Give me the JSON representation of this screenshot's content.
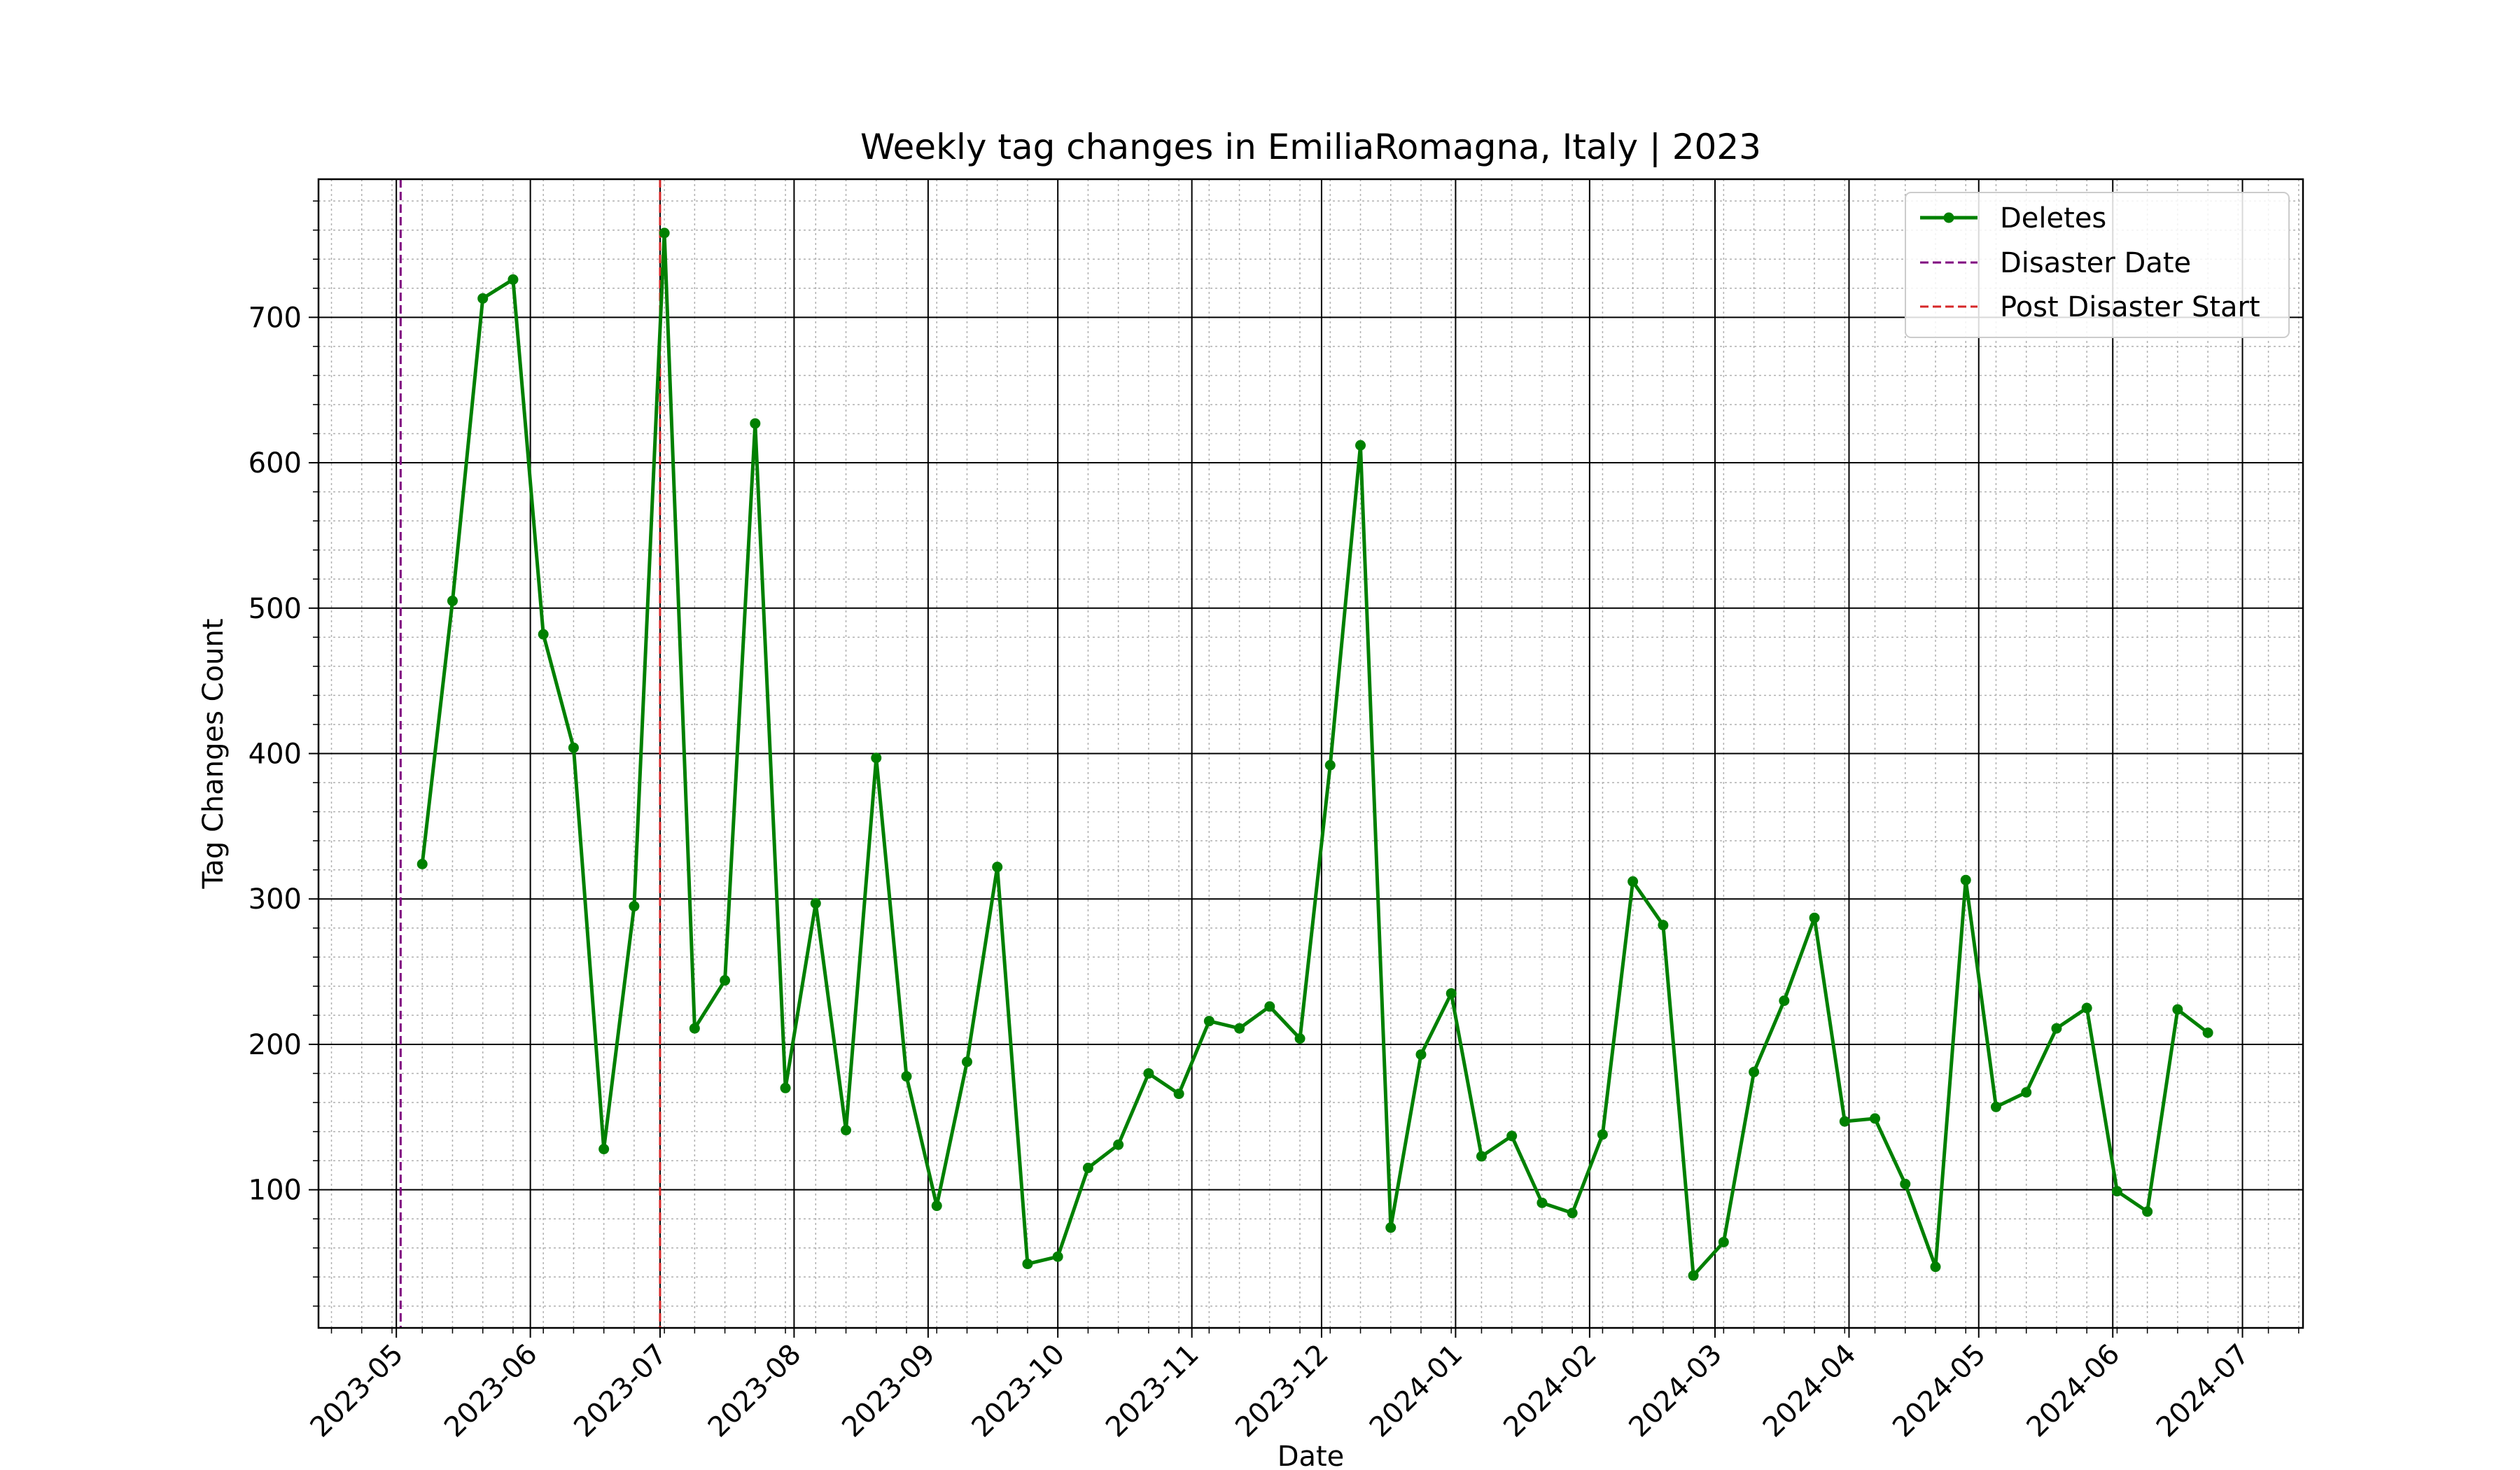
{
  "chart_data": {
    "type": "line",
    "title": "Weekly tag changes in EmiliaRomagna, Italy | 2023",
    "xlabel": "Date",
    "ylabel": "Tag Changes Count",
    "x_range": [
      "2023-04-13",
      "2024-07-15"
    ],
    "ylim": [
      5,
      795
    ],
    "x_ticks": [
      "2023-05",
      "2023-06",
      "2023-07",
      "2023-08",
      "2023-09",
      "2023-10",
      "2023-11",
      "2023-12",
      "2024-01",
      "2024-02",
      "2024-03",
      "2024-04",
      "2024-05",
      "2024-06",
      "2024-07"
    ],
    "y_ticks": [
      100,
      200,
      300,
      400,
      500,
      600,
      700
    ],
    "grid": "major solid, minor dotted",
    "legend_position": "top-right",
    "series": [
      {
        "name": "Deletes",
        "color": "#008000",
        "style": "solid line with circle markers",
        "x": [
          "2023-05-07",
          "2023-05-14",
          "2023-05-21",
          "2023-05-28",
          "2023-06-04",
          "2023-06-11",
          "2023-06-18",
          "2023-06-25",
          "2023-07-02",
          "2023-07-09",
          "2023-07-16",
          "2023-07-23",
          "2023-07-30",
          "2023-08-06",
          "2023-08-13",
          "2023-08-20",
          "2023-08-27",
          "2023-09-03",
          "2023-09-10",
          "2023-09-17",
          "2023-09-24",
          "2023-10-01",
          "2023-10-08",
          "2023-10-15",
          "2023-10-22",
          "2023-10-29",
          "2023-11-05",
          "2023-11-12",
          "2023-11-19",
          "2023-11-26",
          "2023-12-03",
          "2023-12-10",
          "2023-12-17",
          "2023-12-24",
          "2023-12-31",
          "2024-01-07",
          "2024-01-14",
          "2024-01-21",
          "2024-01-28",
          "2024-02-04",
          "2024-02-11",
          "2024-02-18",
          "2024-02-25",
          "2024-03-03",
          "2024-03-10",
          "2024-03-17",
          "2024-03-24",
          "2024-03-31",
          "2024-04-07",
          "2024-04-14",
          "2024-04-21",
          "2024-04-28",
          "2024-05-05",
          "2024-05-12",
          "2024-05-19",
          "2024-05-26",
          "2024-06-02",
          "2024-06-09",
          "2024-06-16",
          "2024-06-23"
        ],
        "y": [
          324,
          505,
          713,
          726,
          482,
          404,
          128,
          295,
          758,
          211,
          244,
          627,
          170,
          297,
          141,
          397,
          178,
          89,
          188,
          322,
          49,
          54,
          115,
          131,
          180,
          166,
          216,
          211,
          226,
          204,
          392,
          612,
          74,
          193,
          235,
          123,
          137,
          91,
          84,
          138,
          312,
          282,
          41,
          64,
          181,
          230,
          287,
          147,
          149,
          104,
          47,
          313,
          157,
          167,
          211,
          225,
          99,
          85,
          224,
          208
        ]
      },
      {
        "name": "Disaster Date",
        "color": "#800080",
        "style": "dashed vertical line",
        "x": "2023-05-02"
      },
      {
        "name": "Post Disaster Start",
        "color": "#d62728",
        "style": "dashed vertical line",
        "x": "2023-07-01"
      }
    ]
  }
}
